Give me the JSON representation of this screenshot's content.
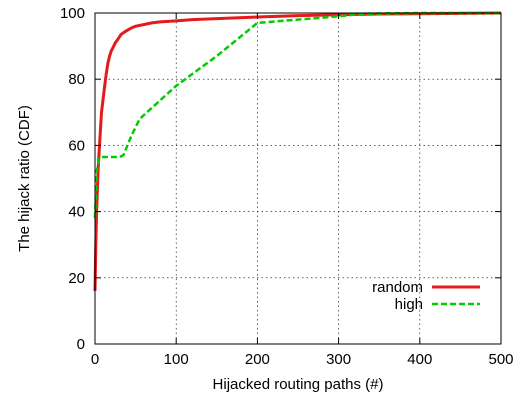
{
  "chart_data": {
    "type": "line",
    "title": "",
    "xlabel": "Hijacked routing paths (#)",
    "ylabel": "The hijack ratio (CDF)",
    "xlim": [
      0,
      500
    ],
    "ylim": [
      0,
      100
    ],
    "xticks": [
      0,
      100,
      200,
      300,
      400,
      500
    ],
    "yticks": [
      0,
      20,
      40,
      60,
      80,
      100
    ],
    "grid": "dotted",
    "legend_position": "bottom-right",
    "series": [
      {
        "name": "random",
        "color": "#e41a1c",
        "style": "solid",
        "x": [
          0,
          1,
          2,
          3,
          4,
          5,
          6,
          7,
          8,
          10,
          12,
          14,
          16,
          18,
          20,
          22,
          25,
          28,
          32,
          36,
          40,
          45,
          50,
          60,
          70,
          80,
          100,
          120,
          150,
          200,
          250,
          300,
          350,
          400,
          500
        ],
        "y": [
          16,
          30,
          40,
          47,
          53,
          58,
          62,
          66,
          70,
          74,
          78,
          82,
          85,
          87,
          88.5,
          89.5,
          91,
          92,
          93.5,
          94.2,
          94.8,
          95.5,
          96,
          96.5,
          97,
          97.3,
          97.6,
          98,
          98.3,
          98.8,
          99.2,
          99.5,
          99.7,
          99.8,
          100
        ]
      },
      {
        "name": "high",
        "color": "#00cc00",
        "style": "dashed",
        "x": [
          0,
          2,
          5,
          10,
          20,
          30,
          35,
          45,
          55,
          100,
          150,
          200,
          250,
          300,
          330,
          400,
          500
        ],
        "y": [
          38,
          52,
          56,
          56.5,
          56.5,
          56.5,
          57,
          63,
          68,
          78,
          87,
          97,
          98,
          99,
          99.8,
          100,
          100
        ]
      }
    ]
  }
}
